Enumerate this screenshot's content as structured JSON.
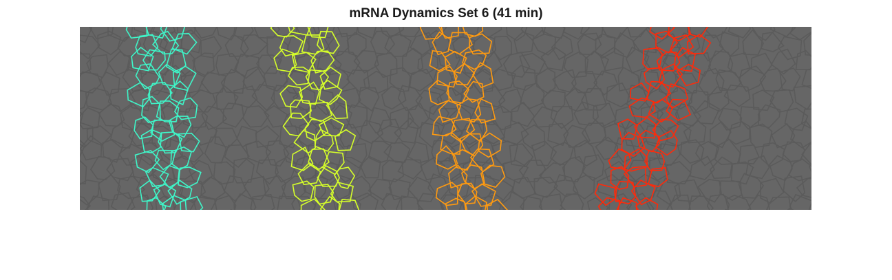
{
  "figure": {
    "title": "mRNA Dynamics Set 6 (41 min)",
    "background_color": "#ffffff",
    "image_background_color": "#666666",
    "membrane_color": "#5b5b5b",
    "stripes": [
      {
        "name": "stripe-cyan",
        "color": "#3ff5c8"
      },
      {
        "name": "stripe-yellow",
        "color": "#d6ff2a"
      },
      {
        "name": "stripe-orange",
        "color": "#ff9a10"
      },
      {
        "name": "stripe-red",
        "color": "#ff2a0a"
      }
    ]
  }
}
